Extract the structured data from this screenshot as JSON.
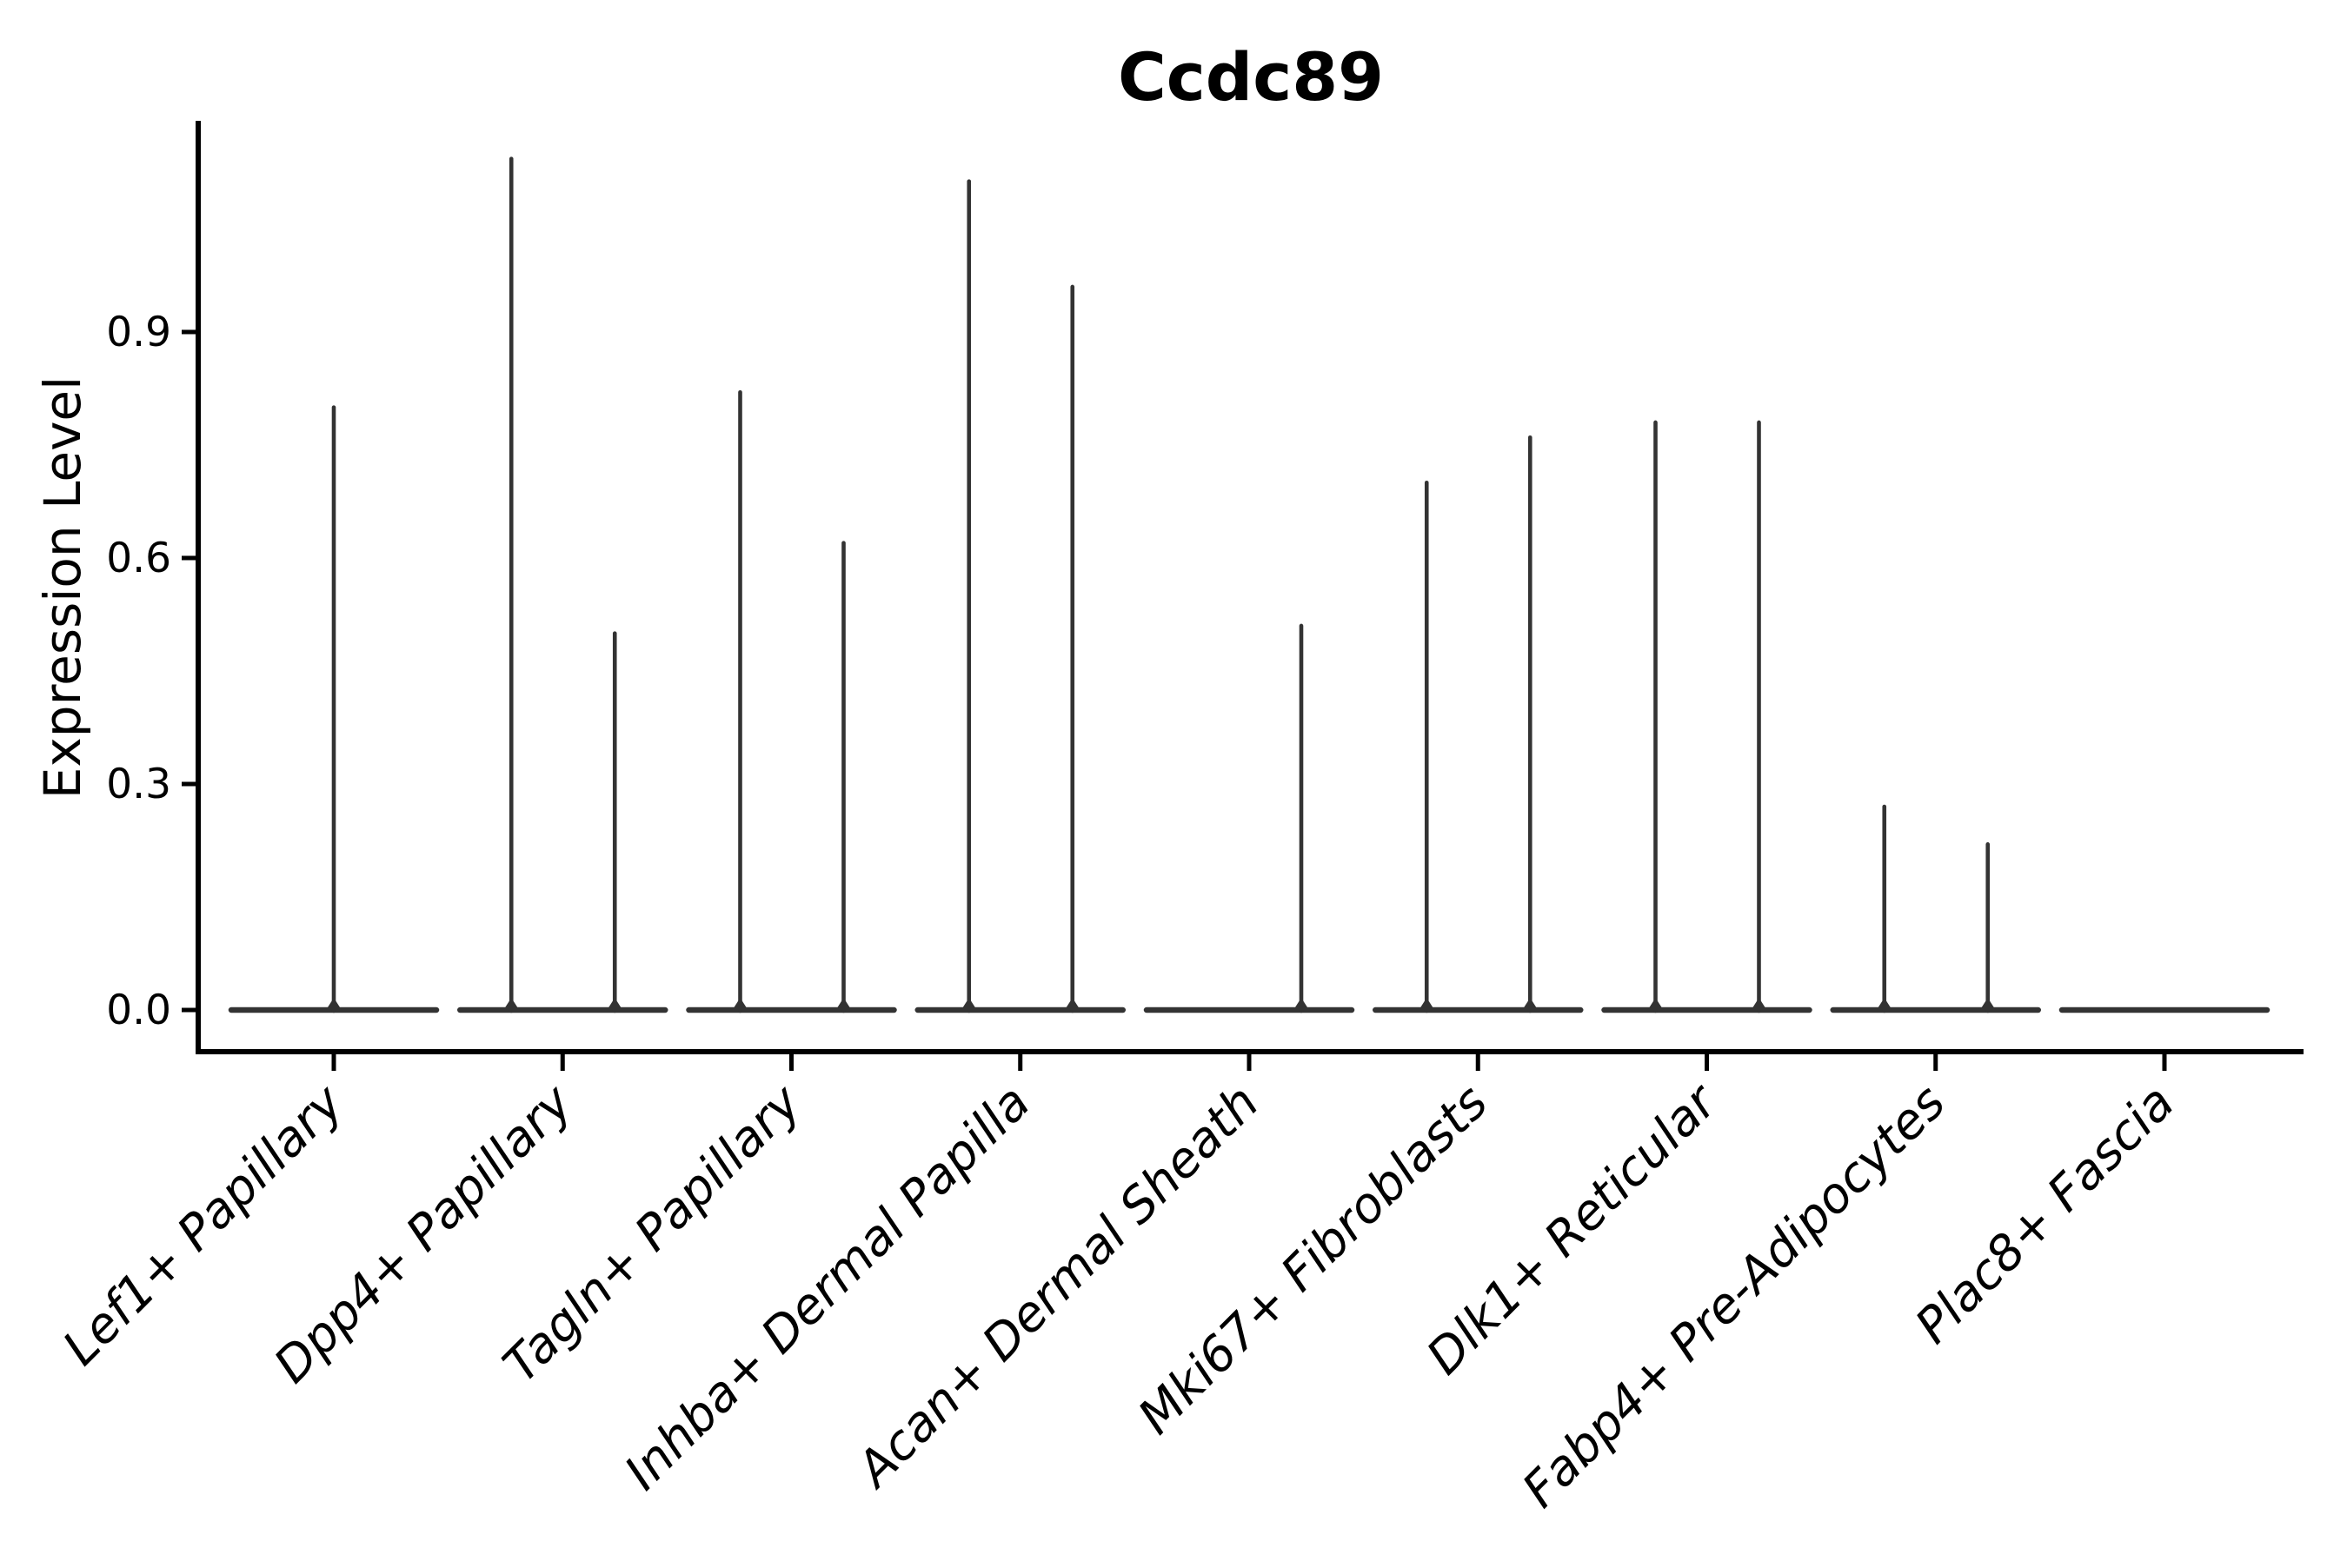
{
  "title": "Ccdc89",
  "colors": {
    "ink": "#000000",
    "violin": "#333333",
    "background": "#ffffff"
  },
  "chart_data": {
    "type": "violin",
    "title": "Ccdc89",
    "xlabel": "",
    "ylabel": "Expression Level",
    "grid": false,
    "legend_position": "none",
    "ylim": [
      -0.06,
      1.18
    ],
    "ytick_labels": [
      "0.0",
      "0.3",
      "0.6",
      "0.9"
    ],
    "ytick_values": [
      0.0,
      0.3,
      0.6,
      0.9
    ],
    "categories": [
      "Lef1+ Papillary",
      "Dpp4+ Papillary",
      "Tagln+ Papillary",
      "Inhba+ Dermal Papilla",
      "Acan+ Dermal Sheath",
      "Mki67+ Fibroblasts",
      "Dlk1+ Reticular",
      "Fabp4+ Pre-Adipocytes",
      "Plac8+ Fascia"
    ],
    "series": [
      {
        "category": "Lef1+ Papillary",
        "baseline_value": 0.0,
        "spikes": [
          {
            "pos": "center",
            "max": 0.8
          }
        ]
      },
      {
        "category": "Dpp4+ Papillary",
        "baseline_value": 0.0,
        "spikes": [
          {
            "pos": "left",
            "max": 1.13
          },
          {
            "pos": "right",
            "max": 0.5
          }
        ]
      },
      {
        "category": "Tagln+ Papillary",
        "baseline_value": 0.0,
        "spikes": [
          {
            "pos": "left",
            "max": 0.82
          },
          {
            "pos": "right",
            "max": 0.62
          }
        ]
      },
      {
        "category": "Inhba+ Dermal Papilla",
        "baseline_value": 0.0,
        "spikes": [
          {
            "pos": "left",
            "max": 1.1
          },
          {
            "pos": "right",
            "max": 0.96
          }
        ]
      },
      {
        "category": "Acan+ Dermal Sheath",
        "baseline_value": 0.0,
        "spikes": [
          {
            "pos": "right",
            "max": 0.51
          }
        ]
      },
      {
        "category": "Mki67+ Fibroblasts",
        "baseline_value": 0.0,
        "spikes": [
          {
            "pos": "left",
            "max": 0.7
          },
          {
            "pos": "right",
            "max": 0.76
          }
        ]
      },
      {
        "category": "Dlk1+ Reticular",
        "baseline_value": 0.0,
        "spikes": [
          {
            "pos": "left",
            "max": 0.78
          },
          {
            "pos": "right",
            "max": 0.78
          }
        ]
      },
      {
        "category": "Fabp4+ Pre-Adipocytes",
        "baseline_value": 0.0,
        "spikes": [
          {
            "pos": "left",
            "max": 0.27
          },
          {
            "pos": "right",
            "max": 0.22
          }
        ]
      },
      {
        "category": "Plac8+ Fascia",
        "baseline_value": 0.0,
        "spikes": []
      }
    ]
  }
}
